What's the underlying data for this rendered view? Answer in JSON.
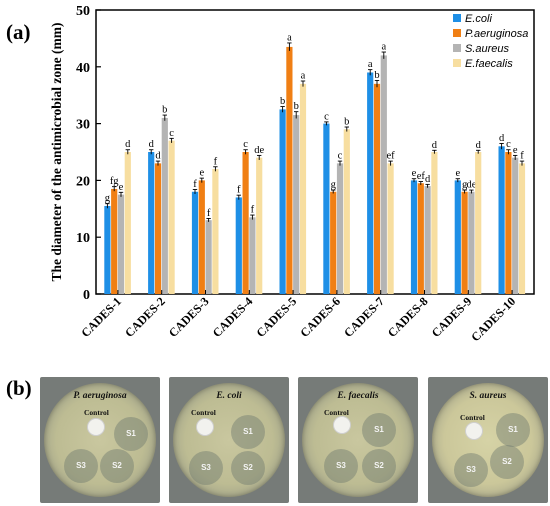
{
  "panel_labels": {
    "a": "(a)",
    "b": "(b)"
  },
  "colors": {
    "E.coli": "#1e8fe6",
    "P.aeruginosa": "#f07f14",
    "S.aureus": "#b4b4b4",
    "E.faecalis": "#f7dea0"
  },
  "chart_data": {
    "type": "bar",
    "title": "",
    "xlabel": "",
    "ylabel": "The diameter of the antimicrobial zone (mm)",
    "ylim": [
      0,
      50
    ],
    "yticks": [
      0,
      10,
      20,
      30,
      40,
      50
    ],
    "legend_position": "top-right",
    "categories": [
      "CADES-1",
      "CADES-2",
      "CADES-3",
      "CADES-4",
      "CADES-5",
      "CADES-6",
      "CADES-7",
      "CADES-8",
      "CADES-9",
      "CADES-10"
    ],
    "series": [
      {
        "name": "E.coli",
        "values": [
          15.5,
          25.0,
          18.0,
          17.0,
          32.5,
          30.0,
          39.0,
          20.0,
          20.0,
          26.0
        ],
        "errors": [
          0.4,
          0.4,
          0.4,
          0.4,
          0.5,
          0.3,
          0.5,
          0.3,
          0.3,
          0.5
        ],
        "labels": [
          "g",
          "d",
          "f",
          "f",
          "b",
          "c",
          "a",
          "e",
          "e",
          "d"
        ]
      },
      {
        "name": "P.aeruginosa",
        "values": [
          18.5,
          23.0,
          20.0,
          25.0,
          43.5,
          18.0,
          37.0,
          19.5,
          18.0,
          25.0
        ],
        "errors": [
          0.4,
          0.4,
          0.4,
          0.4,
          0.7,
          0.3,
          0.6,
          0.3,
          0.3,
          0.4
        ],
        "labels": [
          "fg",
          "d",
          "e",
          "c",
          "a",
          "g",
          "b",
          "ef",
          "g",
          "c"
        ]
      },
      {
        "name": "S.aureus",
        "values": [
          17.5,
          31.0,
          13.0,
          13.5,
          31.5,
          23.0,
          42.0,
          19.0,
          18.0,
          24.0
        ],
        "errors": [
          0.4,
          0.5,
          0.3,
          0.4,
          0.6,
          0.4,
          0.6,
          0.3,
          0.3,
          0.4
        ],
        "labels": [
          "e",
          "b",
          "f",
          "f",
          "b",
          "c",
          "a",
          "d",
          "de",
          "e"
        ]
      },
      {
        "name": "E.faecalis",
        "values": [
          25.0,
          27.0,
          22.0,
          24.0,
          37.0,
          29.0,
          23.0,
          25.0,
          25.0,
          23.0
        ],
        "errors": [
          0.4,
          0.4,
          0.4,
          0.4,
          0.5,
          0.4,
          0.4,
          0.3,
          0.3,
          0.4
        ],
        "labels": [
          "d",
          "c",
          "f",
          "de",
          "a",
          "b",
          "ef",
          "d",
          "d",
          "f"
        ]
      }
    ]
  },
  "plates": [
    {
      "title": "P. aeruginosa",
      "control": "Control",
      "discs": [
        "S1",
        "S2",
        "S3"
      ]
    },
    {
      "title": "E. coli",
      "control": "Control",
      "discs": [
        "S1",
        "S2",
        "S3"
      ]
    },
    {
      "title": "E. faecalis",
      "control": "Control",
      "discs": [
        "S1",
        "S2",
        "S3"
      ]
    },
    {
      "title": "S. aureus",
      "control": "Control",
      "discs": [
        "S1",
        "S2",
        "S3"
      ]
    }
  ]
}
